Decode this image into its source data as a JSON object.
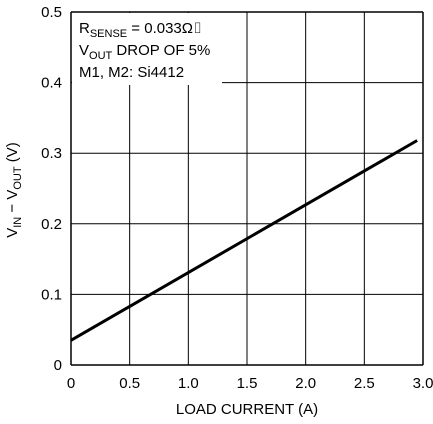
{
  "chart_data": {
    "type": "line",
    "title": "",
    "xlabel": "LOAD CURRENT (A)",
    "ylabel": {
      "main1": "V",
      "sub1": "IN",
      "mid": " − V",
      "sub2": "OUT",
      "tail": " (V)"
    },
    "xlim": [
      0,
      3.0
    ],
    "ylim": [
      0,
      0.5
    ],
    "x_ticks": [
      {
        "value": 0,
        "label": "0"
      },
      {
        "value": 0.5,
        "label": "0.5"
      },
      {
        "value": 1.0,
        "label": "1.0"
      },
      {
        "value": 1.5,
        "label": "1.5"
      },
      {
        "value": 2.0,
        "label": "2.0"
      },
      {
        "value": 2.5,
        "label": "2.5"
      },
      {
        "value": 3.0,
        "label": "3.0"
      }
    ],
    "y_ticks": [
      {
        "value": 0,
        "label": "0"
      },
      {
        "value": 0.1,
        "label": "0.1"
      },
      {
        "value": 0.2,
        "label": "0.2"
      },
      {
        "value": 0.3,
        "label": "0.3"
      },
      {
        "value": 0.4,
        "label": "0.4"
      },
      {
        "value": 0.5,
        "label": "0.5"
      }
    ],
    "grid": true,
    "series": [
      {
        "x": [
          0,
          2.95
        ],
        "y": [
          0.035,
          0.318
        ]
      }
    ],
    "annotations": {
      "line1": {
        "main": "R",
        "sub": "SENSE",
        "tail": " = 0.033Ω⌷"
      },
      "line2": {
        "main": "V",
        "sub": "OUT",
        "tail": " DROP OF 5%"
      },
      "line3": {
        "text": "M1, M2: Si4412"
      }
    },
    "colors": {
      "line": "#000000",
      "grid": "#000000"
    }
  }
}
